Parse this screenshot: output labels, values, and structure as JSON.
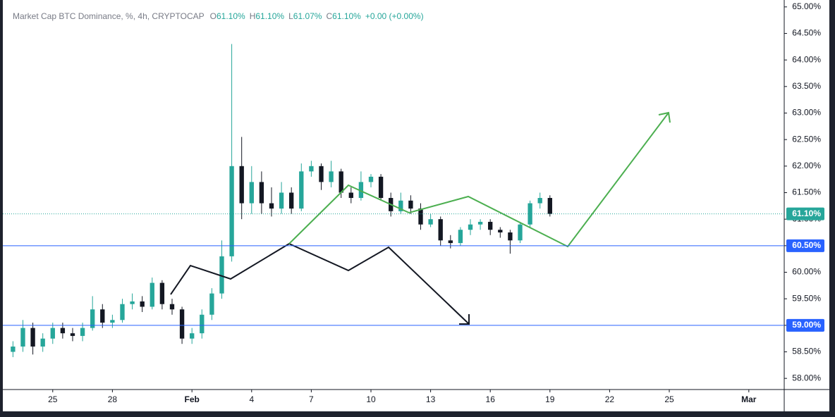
{
  "chart_data": {
    "type": "candlestick",
    "title": "Market Cap BTC Dominance, %, 4h, CRYPTOCAP",
    "ohlc_header": [
      {
        "label": "O",
        "value": "61.10%"
      },
      {
        "label": "H",
        "value": "61.10%"
      },
      {
        "label": "L",
        "value": "61.07%"
      },
      {
        "label": "C",
        "value": "61.10%"
      }
    ],
    "change": "+0.00 (+0.00%)",
    "x": [
      23,
      23.5,
      24,
      24.5,
      25,
      25.5,
      26,
      26.5,
      27,
      27.5,
      28,
      28.5,
      29,
      29.5,
      30,
      30.5,
      31,
      31.5,
      32,
      32.5,
      33,
      33.5,
      34,
      34.5,
      35,
      35.5,
      36,
      36.5,
      37,
      37.5,
      38,
      38.5,
      39,
      39.5,
      40,
      40.5,
      41,
      41.5,
      42,
      42.5,
      43,
      43.5,
      44,
      44.5,
      45,
      45.5,
      46,
      46.5,
      47,
      47.5,
      48,
      48.5,
      49,
      49.5,
      50
    ],
    "open": [
      58.5,
      58.6,
      58.95,
      58.6,
      58.75,
      58.95,
      58.85,
      58.8,
      58.95,
      59.3,
      59.05,
      59.1,
      59.4,
      59.45,
      59.35,
      59.8,
      59.4,
      59.3,
      58.75,
      58.85,
      59.2,
      59.6,
      60.3,
      62.0,
      61.3,
      61.7,
      61.3,
      61.2,
      61.5,
      61.2,
      61.9,
      62.0,
      61.7,
      61.9,
      61.5,
      61.4,
      61.7,
      61.8,
      61.4,
      61.15,
      61.35,
      61.2,
      60.9,
      61.0,
      60.6,
      60.55,
      60.8,
      60.9,
      60.95,
      60.8,
      60.75,
      60.6,
      60.9,
      61.3,
      61.4
    ],
    "high": [
      58.7,
      59.1,
      59.05,
      58.85,
      59.05,
      59.05,
      58.95,
      59.05,
      59.55,
      59.4,
      59.2,
      59.5,
      59.6,
      59.55,
      59.9,
      59.85,
      59.5,
      59.35,
      58.95,
      59.3,
      59.7,
      60.6,
      64.3,
      62.55,
      62.0,
      61.9,
      61.6,
      61.7,
      61.6,
      62.05,
      62.1,
      62.05,
      62.1,
      61.95,
      61.6,
      61.9,
      61.85,
      61.85,
      61.5,
      61.5,
      61.45,
      61.3,
      61.1,
      61.05,
      60.7,
      60.85,
      61.0,
      61.0,
      61.0,
      60.85,
      60.8,
      60.95,
      61.35,
      61.5,
      61.45
    ],
    "low": [
      58.4,
      58.5,
      58.45,
      58.5,
      58.65,
      58.75,
      58.7,
      58.7,
      58.9,
      58.95,
      58.95,
      59.05,
      59.3,
      59.25,
      59.3,
      59.3,
      59.2,
      58.65,
      58.65,
      58.75,
      59.1,
      59.5,
      60.2,
      61.0,
      61.1,
      61.1,
      61.05,
      61.1,
      61.1,
      61.15,
      61.8,
      61.55,
      61.6,
      61.4,
      61.3,
      61.35,
      61.6,
      61.35,
      61.05,
      61.1,
      61.1,
      60.8,
      60.85,
      60.5,
      60.45,
      60.5,
      60.7,
      60.8,
      60.7,
      60.65,
      60.35,
      60.55,
      60.85,
      61.2,
      61.05
    ],
    "close": [
      58.6,
      58.95,
      58.6,
      58.75,
      58.95,
      58.85,
      58.8,
      58.95,
      59.3,
      59.05,
      59.1,
      59.4,
      59.45,
      59.35,
      59.8,
      59.4,
      59.3,
      58.75,
      58.85,
      59.2,
      59.6,
      60.3,
      62.0,
      61.3,
      61.7,
      61.3,
      61.2,
      61.5,
      61.2,
      61.9,
      62.0,
      61.7,
      61.9,
      61.5,
      61.4,
      61.7,
      61.8,
      61.4,
      61.15,
      61.35,
      61.2,
      60.9,
      61.0,
      60.6,
      60.55,
      60.8,
      60.9,
      60.95,
      60.8,
      60.75,
      60.6,
      60.9,
      61.3,
      61.4,
      61.1
    ],
    "up_color": "#26a69a",
    "down_color": "#131722",
    "xlim": [
      22.49,
      61.78
    ],
    "xticks": [
      {
        "value": 25,
        "label": "25"
      },
      {
        "value": 28,
        "label": "28"
      },
      {
        "value": 32,
        "label": "Feb"
      },
      {
        "value": 35,
        "label": "4"
      },
      {
        "value": 38,
        "label": "7"
      },
      {
        "value": 41,
        "label": "10"
      },
      {
        "value": 44,
        "label": "13"
      },
      {
        "value": 47,
        "label": "16"
      },
      {
        "value": 50,
        "label": "19"
      },
      {
        "value": 53,
        "label": "22"
      },
      {
        "value": 56,
        "label": "25"
      },
      {
        "value": 60,
        "label": "Mar"
      }
    ],
    "ylim": [
      57.79,
      65.13
    ],
    "yticks": [
      {
        "value": 58,
        "label": "58.00%"
      },
      {
        "value": 58.5,
        "label": "58.50%"
      },
      {
        "value": 59,
        "label": "59.00%"
      },
      {
        "value": 59.5,
        "label": "59.50%"
      },
      {
        "value": 60,
        "label": "60.00%"
      },
      {
        "value": 60.5,
        "label": "60.50%"
      },
      {
        "value": 61,
        "label": "61.00%"
      },
      {
        "value": 61.5,
        "label": "61.50%"
      },
      {
        "value": 62,
        "label": "62.00%"
      },
      {
        "value": 62.5,
        "label": "62.50%"
      },
      {
        "value": 63,
        "label": "63.00%"
      },
      {
        "value": 63.5,
        "label": "63.50%"
      },
      {
        "value": 64,
        "label": "64.00%"
      },
      {
        "value": 64.5,
        "label": "64.50%"
      },
      {
        "value": 65,
        "label": "65.00%"
      }
    ],
    "hlines": [
      {
        "value": 60.5,
        "label": "60.50%",
        "color": "#2962ff"
      },
      {
        "value": 59,
        "label": "59.00%",
        "color": "#2962ff"
      }
    ],
    "last_price": {
      "value": 61.1,
      "label": "61.10%",
      "color": "#26a69a"
    }
  }
}
